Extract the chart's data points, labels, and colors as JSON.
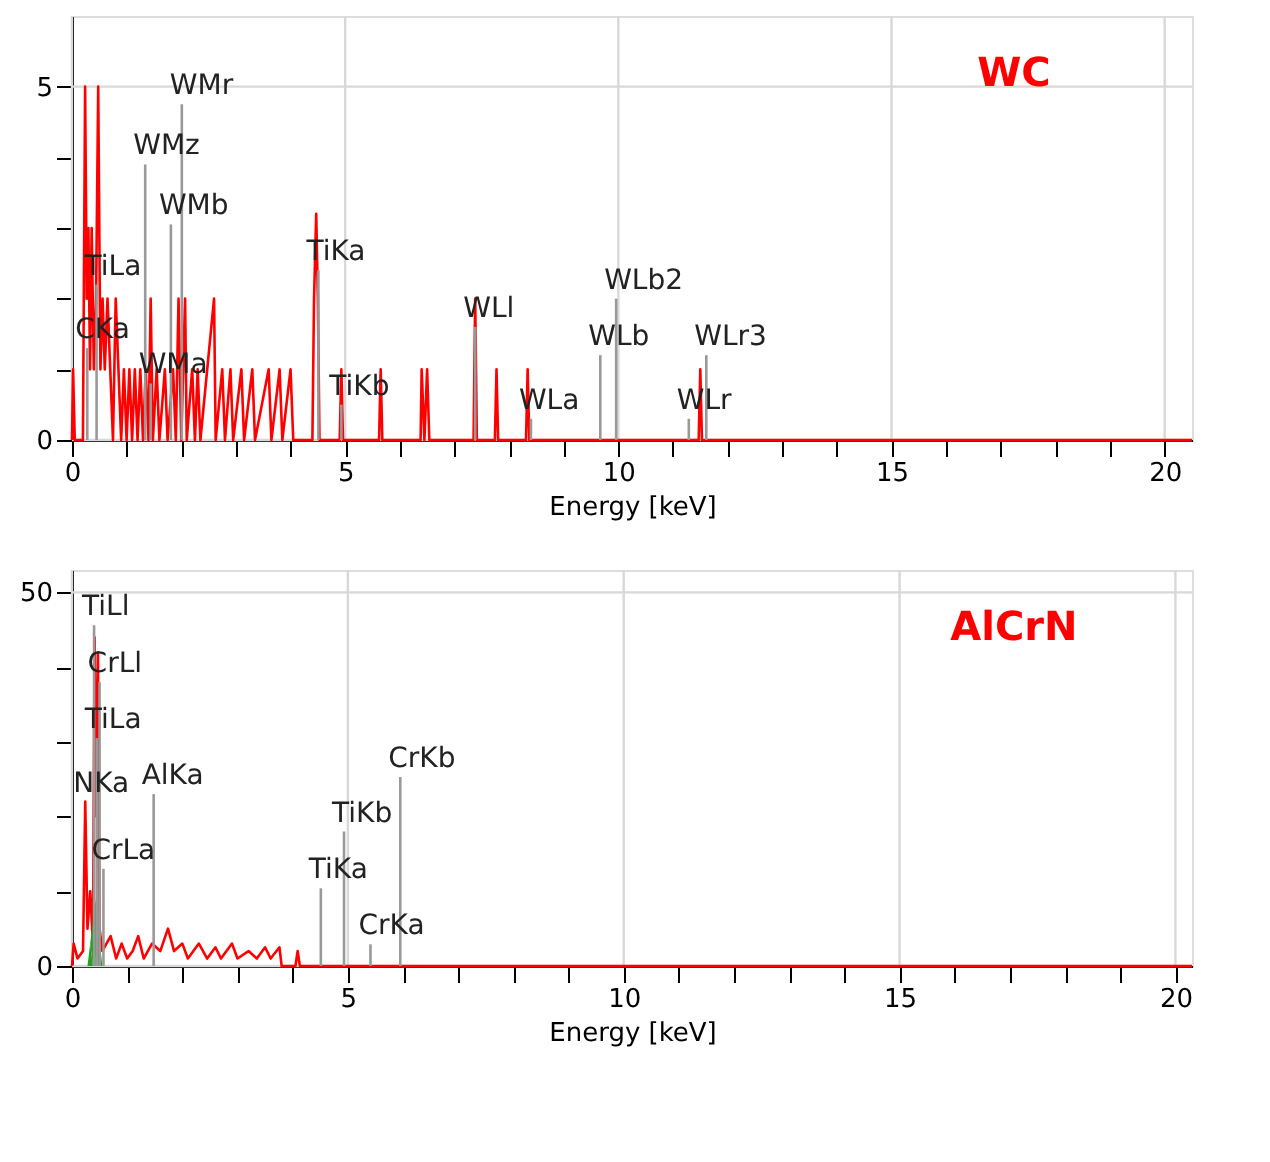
{
  "chart_data": [
    {
      "type": "line",
      "xlabel": "Energy [keV]",
      "xlim": [
        0,
        20.5
      ],
      "ylim": [
        0,
        6
      ],
      "xticks": [
        0,
        {
          "value": 1,
          "label": null
        },
        {
          "value": 2,
          "label": null
        },
        {
          "value": 3,
          "label": null
        },
        {
          "value": 4,
          "label": null
        },
        5,
        {
          "value": 6,
          "label": null
        },
        {
          "value": 7,
          "label": null
        },
        {
          "value": 8,
          "label": null
        },
        {
          "value": 9,
          "label": null
        },
        10,
        {
          "value": 11,
          "label": null
        },
        {
          "value": 12,
          "label": null
        },
        {
          "value": 13,
          "label": null
        },
        {
          "value": 14,
          "label": null
        },
        15,
        {
          "value": 16,
          "label": null
        },
        {
          "value": 17,
          "label": null
        },
        {
          "value": 18,
          "label": null
        },
        {
          "value": 19,
          "label": null
        },
        20
      ],
      "yticks": [
        0,
        {
          "value": 1,
          "label": null
        },
        {
          "value": 2,
          "label": null
        },
        {
          "value": 3,
          "label": null
        },
        {
          "value": 4,
          "label": null
        },
        5
      ],
      "grid": true,
      "series": [
        {
          "color": "#ff0000",
          "x": [
            0,
            0.02,
            0.05,
            0.2,
            0.24,
            0.27,
            0.3,
            0.33,
            0.36,
            0.4,
            0.44,
            0.48,
            0.52,
            0.56,
            0.6,
            0.65,
            0.7,
            0.75,
            0.8,
            0.85,
            0.9,
            0.95,
            1.0,
            1.05,
            1.1,
            1.15,
            1.2,
            1.25,
            1.3,
            1.35,
            1.4,
            1.44,
            1.48,
            1.55,
            1.6,
            1.7,
            1.75,
            1.85,
            1.9,
            1.95,
            2.0,
            2.07,
            2.1,
            2.2,
            2.25,
            2.3,
            2.35,
            2.6,
            2.63,
            2.75,
            2.8,
            2.9,
            2.95,
            3.1,
            3.15,
            3.3,
            3.35,
            3.6,
            3.65,
            3.8,
            3.85,
            4.0,
            4.05,
            4.4,
            4.43,
            4.47,
            4.5,
            4.53,
            4.9,
            4.93,
            4.96,
            5.62,
            5.65,
            5.68,
            6.38,
            6.4,
            6.45,
            6.5,
            6.54,
            7.35,
            7.38,
            7.41,
            7.74,
            7.77,
            7.8,
            8.31,
            8.34,
            8.37,
            11.47,
            11.5,
            11.53,
            20.5
          ],
          "values": [
            0,
            1,
            0,
            0,
            5,
            2,
            3,
            1,
            3,
            1,
            2,
            5,
            1,
            2,
            1,
            2,
            1,
            0,
            2,
            1,
            0,
            1,
            0,
            1,
            0,
            1,
            0,
            1,
            0,
            1,
            0,
            2,
            0,
            1,
            0,
            1,
            0,
            1,
            0,
            2,
            0,
            2,
            0,
            1,
            0,
            1,
            0,
            2,
            0,
            1,
            0,
            1,
            0,
            1,
            0,
            1,
            0,
            1,
            0,
            1,
            0,
            1,
            0,
            0,
            2,
            3.2,
            2,
            0,
            0,
            1,
            0,
            0,
            1,
            0,
            0,
            1,
            0,
            1,
            0,
            0,
            2,
            0,
            0,
            1,
            0,
            0,
            1,
            0,
            0,
            1,
            0,
            0
          ]
        },
        {
          "type": "bar",
          "color": "#999999",
          "x": [
            0.28,
            0.45,
            1.34,
            1.44,
            1.81,
            2.01,
            4.51,
            4.93,
            7.38,
            8.4,
            9.67,
            9.96,
            11.29,
            11.61
          ],
          "values": [
            1.3,
            2.2,
            3.9,
            0.8,
            3.05,
            4.75,
            2.4,
            0.5,
            1.6,
            0.3,
            1.2,
            2.0,
            0.3,
            1.2
          ]
        }
      ],
      "annotations": [
        "WC",
        {
          "text": "WMr",
          "x": 2.01,
          "y": 4.75
        },
        {
          "text": "WMz",
          "x": 1.34,
          "y": 3.9
        },
        {
          "text": "WMb",
          "x": 1.81,
          "y": 3.05
        },
        {
          "text": "TiLa",
          "x": 0.45,
          "y": 2.2
        },
        {
          "text": "CKa",
          "x": 0.28,
          "y": 1.3
        },
        {
          "text": "WMa",
          "x": 1.44,
          "y": 0.8
        },
        {
          "text": "TiKa",
          "x": 4.51,
          "y": 2.4
        },
        {
          "text": "TiKb",
          "x": 4.93,
          "y": 0.5
        },
        {
          "text": "WLl",
          "x": 7.38,
          "y": 1.6
        },
        {
          "text": "WLa",
          "x": 8.4,
          "y": 0.3
        },
        {
          "text": "WLb",
          "x": 9.67,
          "y": 1.2
        },
        {
          "text": "WLb2",
          "x": 9.96,
          "y": 2.0
        },
        {
          "text": "WLr3",
          "x": 11.61,
          "y": 1.2
        },
        {
          "text": "WLr",
          "x": 11.29,
          "y": 0.3
        }
      ]
    },
    {
      "type": "line",
      "xlabel": "Energy [keV]",
      "xlim": [
        0,
        20.3
      ],
      "ylim": [
        0,
        53
      ],
      "xticks": [
        0,
        {
          "value": 1,
          "label": null
        },
        {
          "value": 2,
          "label": null
        },
        {
          "value": 3,
          "label": null
        },
        {
          "value": 4,
          "label": null
        },
        5,
        {
          "value": 6,
          "label": null
        },
        {
          "value": 7,
          "label": null
        },
        {
          "value": 8,
          "label": null
        },
        {
          "value": 9,
          "label": null
        },
        10,
        {
          "value": 11,
          "label": null
        },
        {
          "value": 12,
          "label": null
        },
        {
          "value": 13,
          "label": null
        },
        {
          "value": 14,
          "label": null
        },
        15,
        {
          "value": 16,
          "label": null
        },
        {
          "value": 17,
          "label": null
        },
        {
          "value": 18,
          "label": null
        },
        {
          "value": 19,
          "label": null
        },
        20
      ],
      "yticks": [
        0,
        {
          "value": 10,
          "label": null
        },
        {
          "value": 20,
          "label": null
        },
        {
          "value": 30,
          "label": null
        },
        {
          "value": 40,
          "label": null
        },
        50
      ],
      "grid": true,
      "series": [
        {
          "color": "#ff0000",
          "x": [
            0,
            0.03,
            0.1,
            0.2,
            0.24,
            0.28,
            0.33,
            0.38,
            0.41,
            0.44,
            0.47,
            0.5,
            0.55,
            0.7,
            0.8,
            0.9,
            1.0,
            1.1,
            1.2,
            1.3,
            1.45,
            1.6,
            1.74,
            1.85,
            2.0,
            2.1,
            2.3,
            2.45,
            2.6,
            2.7,
            2.9,
            3.0,
            3.2,
            3.35,
            3.5,
            3.6,
            3.76,
            3.8,
            4.05,
            4.09,
            4.13,
            20.3
          ],
          "values": [
            0,
            3,
            1,
            2,
            22,
            5,
            10,
            3,
            44,
            20,
            42,
            5,
            2,
            4,
            1,
            3,
            1,
            2,
            4,
            1,
            3,
            2,
            5,
            2,
            3,
            1,
            3,
            1,
            2.5,
            1,
            3,
            1,
            2,
            1,
            2.5,
            1,
            2.5,
            0,
            0,
            2,
            0,
            0
          ]
        },
        {
          "type": "area",
          "color": "#22a022",
          "x": [
            0.28,
            0.33,
            0.38,
            0.43,
            0.47,
            0.52,
            0.55
          ],
          "values": [
            0,
            3,
            6,
            9,
            6,
            2,
            0
          ]
        },
        {
          "type": "bar",
          "color": "#999999",
          "x": [
            0.4,
            0.45,
            0.5,
            0.57,
            1.48,
            4.51,
            4.93,
            5.41,
            5.95
          ],
          "values": [
            45.6,
            30.5,
            38,
            13,
            23,
            10.4,
            18,
            2.9,
            25.3
          ]
        }
      ],
      "annotations": [
        "AlCrN",
        {
          "text": "TiLl",
          "x": 0.4,
          "y": 45.6
        },
        {
          "text": "CrLl",
          "x": 0.5,
          "y": 38
        },
        {
          "text": "TiLa",
          "x": 0.45,
          "y": 30.5
        },
        {
          "text": "NKa",
          "x": 0.24,
          "y": 22
        },
        {
          "text": "CrLa",
          "x": 0.57,
          "y": 13
        },
        {
          "text": "AlKa",
          "x": 1.48,
          "y": 23
        },
        {
          "text": "TiKa",
          "x": 4.51,
          "y": 10.4
        },
        {
          "text": "TiKb",
          "x": 4.93,
          "y": 18
        },
        {
          "text": "CrKa",
          "x": 5.41,
          "y": 2.9
        },
        {
          "text": "CrKb",
          "x": 5.95,
          "y": 25.3
        }
      ]
    }
  ]
}
